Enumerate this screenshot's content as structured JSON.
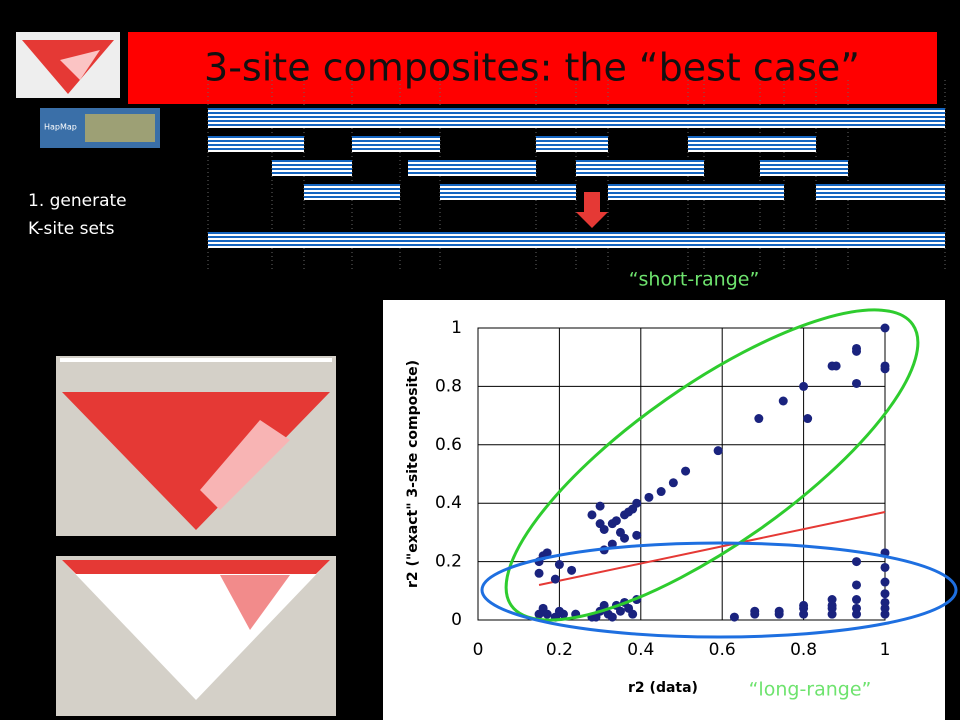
{
  "slide": {
    "title": "3-site composites: the “best case”",
    "step": [
      "1. generate",
      "K-site sets"
    ],
    "short_label": "“short-range”",
    "long_label": "“long-range”"
  },
  "chart_data": {
    "type": "scatter",
    "x_label": "r2 (data)",
    "y_label": "r2 (\"exact\" 3-site composite)",
    "xlim": [
      0,
      1
    ],
    "ylim": [
      0,
      1
    ],
    "xticks": [
      0,
      0.2,
      0.4,
      0.6,
      0.8,
      1
    ],
    "yticks": [
      0,
      0.2,
      0.4,
      0.6,
      0.8,
      1
    ],
    "grid": true,
    "series": [
      {
        "color": "#1a237e",
        "x": [
          0.15,
          0.16,
          0.17,
          0.15,
          0.2,
          0.19,
          0.23,
          0.28,
          0.3,
          0.3,
          0.31,
          0.33,
          0.34,
          0.35,
          0.36,
          0.37,
          0.38,
          0.39,
          0.31,
          0.33,
          0.36,
          0.39,
          0.42,
          0.45,
          0.48,
          0.51,
          0.59,
          0.69,
          0.75,
          0.8,
          0.81,
          0.87,
          0.88,
          0.93,
          0.93,
          0.93,
          1,
          1,
          1,
          0.15,
          0.16,
          0.17,
          0.19,
          0.2,
          0.21,
          0.24,
          0.28,
          0.29,
          0.3,
          0.31,
          0.32,
          0.33,
          0.34,
          0.35,
          0.36,
          0.37,
          0.38,
          0.39,
          0.63,
          0.68,
          0.68,
          0.74,
          0.74,
          0.8,
          0.8,
          0.8,
          0.87,
          0.87,
          0.87,
          0.87,
          0.93,
          0.93,
          0.93,
          0.93,
          0.93,
          1,
          1,
          1,
          1,
          1,
          1,
          1
        ],
        "y": [
          0.2,
          0.22,
          0.23,
          0.16,
          0.19,
          0.14,
          0.17,
          0.36,
          0.39,
          0.33,
          0.31,
          0.33,
          0.34,
          0.3,
          0.36,
          0.37,
          0.38,
          0.4,
          0.24,
          0.26,
          0.28,
          0.29,
          0.42,
          0.44,
          0.47,
          0.51,
          0.58,
          0.69,
          0.75,
          0.8,
          0.69,
          0.87,
          0.87,
          0.93,
          0.92,
          0.81,
          1,
          0.86,
          0.87,
          0.02,
          0.04,
          0.02,
          0.01,
          0.03,
          0.02,
          0.02,
          0.01,
          0.01,
          0.03,
          0.05,
          0.02,
          0.01,
          0.05,
          0.03,
          0.06,
          0.04,
          0.02,
          0.07,
          0.01,
          0.02,
          0.03,
          0.02,
          0.03,
          0.02,
          0.04,
          0.05,
          0.02,
          0.04,
          0.07,
          0.05,
          0.02,
          0.04,
          0.07,
          0.12,
          0.2,
          0.02,
          0.04,
          0.06,
          0.09,
          0.13,
          0.18,
          0.23
        ]
      }
    ],
    "trend_line": {
      "color": "#e53935",
      "x": [
        0.15,
        1
      ],
      "y": [
        0.12,
        0.37
      ]
    }
  }
}
